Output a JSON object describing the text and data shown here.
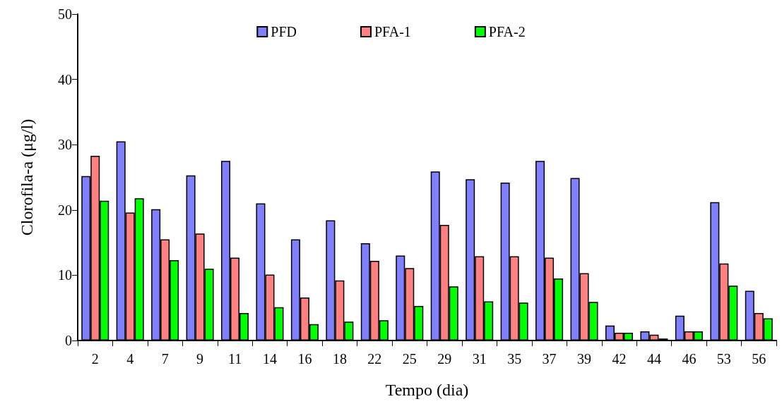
{
  "chart_data": {
    "type": "bar",
    "xlabel": "Tempo (dia)",
    "ylabel": "Clorofila-a (μg/l)",
    "categories": [
      "2",
      "4",
      "7",
      "9",
      "11",
      "14",
      "16",
      "18",
      "22",
      "25",
      "29",
      "31",
      "35",
      "37",
      "39",
      "42",
      "44",
      "46",
      "53",
      "56"
    ],
    "series": [
      {
        "name": "PFD",
        "color": "#8080ff",
        "values": [
          25.2,
          30.5,
          20.1,
          25.3,
          27.5,
          21.0,
          15.5,
          18.4,
          14.9,
          13.0,
          25.9,
          24.7,
          24.2,
          27.5,
          24.9,
          2.3,
          1.4,
          3.8,
          21.2,
          7.6
        ]
      },
      {
        "name": "PFA-1",
        "color": "#ff8080",
        "values": [
          28.3,
          19.6,
          15.5,
          16.4,
          12.7,
          10.1,
          6.6,
          9.2,
          12.2,
          11.1,
          17.7,
          12.9,
          12.9,
          12.7,
          10.3,
          1.2,
          0.9,
          1.4,
          11.8,
          4.2
        ]
      },
      {
        "name": "PFA-2",
        "color": "#00ff00",
        "values": [
          21.4,
          21.8,
          12.3,
          11.0,
          4.2,
          5.1,
          2.5,
          2.9,
          3.1,
          5.3,
          8.3,
          6.0,
          5.8,
          9.5,
          5.9,
          1.2,
          0.3,
          1.4,
          8.4,
          3.4
        ]
      }
    ],
    "ylim": [
      0,
      50
    ],
    "yticks": [
      0,
      10,
      20,
      30,
      40,
      50
    ],
    "grid": false,
    "legend": "top"
  }
}
